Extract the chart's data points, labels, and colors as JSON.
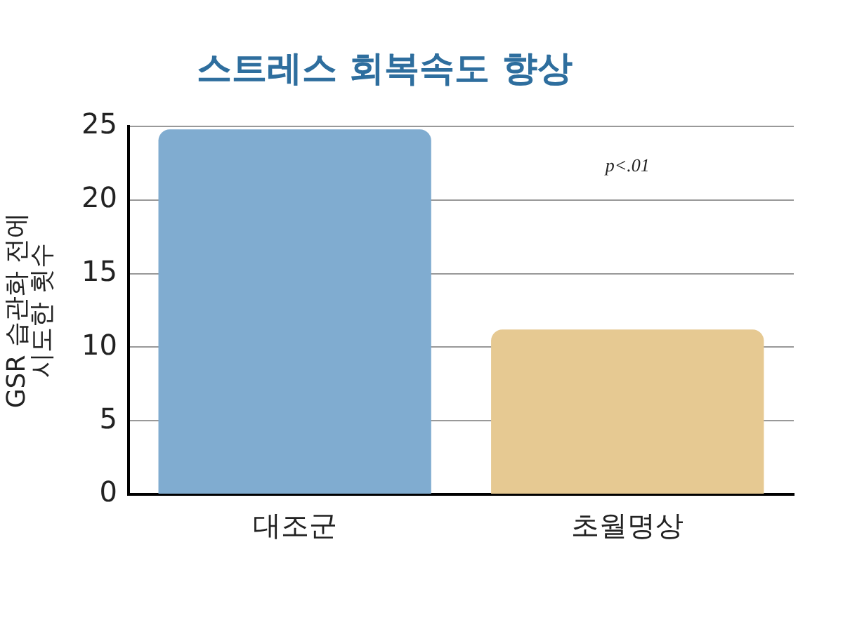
{
  "chart_data": {
    "type": "bar",
    "title": "스트레스 회복속도 향상",
    "ylabel": "GSR 습관화 전에\n시도한 횟수",
    "categories": [
      "대조군",
      "초월명상"
    ],
    "colors": [
      "#80acd0",
      "#e6c992"
    ],
    "values": [
      24.8,
      11.2
    ],
    "ylim": [
      0,
      25
    ],
    "yticks": [
      0,
      5,
      10,
      15,
      20,
      25
    ],
    "grid": "y",
    "legend": false,
    "annotations": [
      "p<.01"
    ]
  }
}
